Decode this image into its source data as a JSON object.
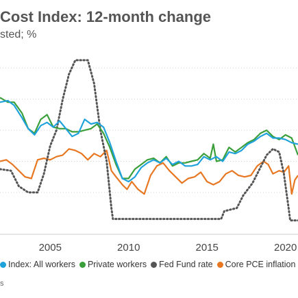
{
  "chart_data": {
    "type": "line",
    "title": "Cost Index: 12-month change",
    "subtitle": "sted; %",
    "x_ticks": [
      2005,
      2010,
      2015,
      2020
    ],
    "xlim": [
      2001.8,
      2020.8
    ],
    "ylim": [
      -0.3,
      5.6
    ],
    "grid": true,
    "legend_position": "bottom",
    "source_text": "s",
    "series": [
      {
        "name": "Index: All workers",
        "color": "#1fa2dc",
        "points": [
          [
            2001.8,
            3.9
          ],
          [
            2002.3,
            3.95
          ],
          [
            2002.7,
            3.8
          ],
          [
            2003.2,
            3.4
          ],
          [
            2003.6,
            3.05
          ],
          [
            2004.0,
            2.85
          ],
          [
            2004.4,
            3.15
          ],
          [
            2004.8,
            3.25
          ],
          [
            2005.2,
            3.1
          ],
          [
            2005.6,
            3.3
          ],
          [
            2006.0,
            3.05
          ],
          [
            2006.4,
            2.8
          ],
          [
            2006.8,
            2.9
          ],
          [
            2007.2,
            3.35
          ],
          [
            2007.6,
            3.2
          ],
          [
            2008.0,
            3.25
          ],
          [
            2008.4,
            3.1
          ],
          [
            2008.8,
            2.6
          ],
          [
            2009.2,
            2.0
          ],
          [
            2009.6,
            1.45
          ],
          [
            2010.0,
            1.35
          ],
          [
            2010.4,
            1.5
          ],
          [
            2010.8,
            1.8
          ],
          [
            2011.2,
            1.95
          ],
          [
            2011.6,
            2.05
          ],
          [
            2012.0,
            1.95
          ],
          [
            2012.4,
            2.1
          ],
          [
            2012.8,
            1.9
          ],
          [
            2013.2,
            2.0
          ],
          [
            2013.6,
            1.85
          ],
          [
            2014.0,
            1.85
          ],
          [
            2014.4,
            1.9
          ],
          [
            2014.8,
            2.15
          ],
          [
            2015.2,
            2.05
          ],
          [
            2015.6,
            2.15
          ],
          [
            2016.0,
            2.0
          ],
          [
            2016.4,
            2.3
          ],
          [
            2016.8,
            2.25
          ],
          [
            2017.2,
            2.35
          ],
          [
            2017.6,
            2.55
          ],
          [
            2018.0,
            2.65
          ],
          [
            2018.4,
            2.8
          ],
          [
            2018.8,
            2.9
          ],
          [
            2019.2,
            2.75
          ],
          [
            2019.6,
            2.75
          ],
          [
            2020.0,
            2.7
          ],
          [
            2020.4,
            2.6
          ],
          [
            2020.8,
            2.55
          ]
        ]
      },
      {
        "name": "Private workers",
        "color": "#3a9f3a",
        "points": [
          [
            2001.8,
            4.05
          ],
          [
            2002.3,
            3.9
          ],
          [
            2002.7,
            3.9
          ],
          [
            2003.2,
            3.55
          ],
          [
            2003.6,
            3.05
          ],
          [
            2004.0,
            2.9
          ],
          [
            2004.4,
            3.35
          ],
          [
            2004.8,
            3.5
          ],
          [
            2005.2,
            3.1
          ],
          [
            2005.6,
            3.05
          ],
          [
            2006.0,
            3.05
          ],
          [
            2006.4,
            2.95
          ],
          [
            2006.8,
            2.95
          ],
          [
            2007.2,
            3.0
          ],
          [
            2007.6,
            3.05
          ],
          [
            2008.0,
            3.2
          ],
          [
            2008.4,
            2.9
          ],
          [
            2008.8,
            2.45
          ],
          [
            2009.2,
            1.9
          ],
          [
            2009.6,
            1.45
          ],
          [
            2010.0,
            1.45
          ],
          [
            2010.4,
            1.75
          ],
          [
            2010.8,
            1.9
          ],
          [
            2011.2,
            2.05
          ],
          [
            2011.6,
            2.1
          ],
          [
            2012.0,
            1.95
          ],
          [
            2012.4,
            2.15
          ],
          [
            2012.8,
            1.85
          ],
          [
            2013.2,
            1.95
          ],
          [
            2013.6,
            1.95
          ],
          [
            2014.0,
            2.0
          ],
          [
            2014.4,
            2.05
          ],
          [
            2014.8,
            2.25
          ],
          [
            2015.2,
            2.1
          ],
          [
            2015.4,
            2.55
          ],
          [
            2015.6,
            2.0
          ],
          [
            2016.0,
            2.05
          ],
          [
            2016.4,
            2.45
          ],
          [
            2016.8,
            2.3
          ],
          [
            2017.2,
            2.45
          ],
          [
            2017.6,
            2.6
          ],
          [
            2018.0,
            2.7
          ],
          [
            2018.4,
            2.9
          ],
          [
            2018.8,
            3.0
          ],
          [
            2019.2,
            2.8
          ],
          [
            2019.6,
            2.7
          ],
          [
            2020.0,
            2.85
          ],
          [
            2020.4,
            2.75
          ],
          [
            2020.8,
            2.2
          ]
        ]
      },
      {
        "name": "Fed Fund rate",
        "color": "#555555",
        "points": [
          [
            2001.8,
            1.75
          ],
          [
            2002.5,
            1.7
          ],
          [
            2003.0,
            1.2
          ],
          [
            2003.6,
            1.0
          ],
          [
            2004.2,
            1.0
          ],
          [
            2004.6,
            1.6
          ],
          [
            2005.0,
            2.5
          ],
          [
            2005.4,
            3.0
          ],
          [
            2005.8,
            4.0
          ],
          [
            2006.2,
            4.8
          ],
          [
            2006.6,
            5.25
          ],
          [
            2007.4,
            5.25
          ],
          [
            2007.8,
            4.5
          ],
          [
            2008.2,
            3.0
          ],
          [
            2008.6,
            2.0
          ],
          [
            2008.9,
            0.5
          ],
          [
            2009.0,
            0.15
          ],
          [
            2015.9,
            0.15
          ],
          [
            2016.1,
            0.4
          ],
          [
            2016.9,
            0.5
          ],
          [
            2017.3,
            0.9
          ],
          [
            2017.9,
            1.3
          ],
          [
            2018.3,
            1.7
          ],
          [
            2018.8,
            2.2
          ],
          [
            2019.2,
            2.4
          ],
          [
            2019.6,
            2.3
          ],
          [
            2019.9,
            1.6
          ],
          [
            2020.2,
            0.5
          ],
          [
            2020.3,
            0.1
          ],
          [
            2020.8,
            0.1
          ]
        ]
      },
      {
        "name": "Core PCE inflation",
        "color": "#e87722",
        "points": [
          [
            2001.8,
            2.0
          ],
          [
            2002.2,
            2.05
          ],
          [
            2002.6,
            1.9
          ],
          [
            2003.0,
            1.7
          ],
          [
            2003.4,
            1.5
          ],
          [
            2003.8,
            1.45
          ],
          [
            2004.2,
            2.05
          ],
          [
            2004.6,
            2.1
          ],
          [
            2005.0,
            2.05
          ],
          [
            2005.4,
            2.15
          ],
          [
            2005.8,
            2.2
          ],
          [
            2006.2,
            2.4
          ],
          [
            2006.6,
            2.35
          ],
          [
            2007.0,
            2.25
          ],
          [
            2007.4,
            2.05
          ],
          [
            2007.8,
            2.25
          ],
          [
            2008.2,
            2.15
          ],
          [
            2008.6,
            2.35
          ],
          [
            2008.9,
            1.7
          ],
          [
            2009.2,
            1.5
          ],
          [
            2009.6,
            1.25
          ],
          [
            2009.9,
            1.1
          ],
          [
            2010.2,
            1.35
          ],
          [
            2010.6,
            1.1
          ],
          [
            2011.0,
            0.95
          ],
          [
            2011.4,
            1.55
          ],
          [
            2011.8,
            1.85
          ],
          [
            2012.2,
            1.95
          ],
          [
            2012.6,
            1.7
          ],
          [
            2013.0,
            1.5
          ],
          [
            2013.4,
            1.3
          ],
          [
            2013.8,
            1.45
          ],
          [
            2014.2,
            1.5
          ],
          [
            2014.6,
            1.65
          ],
          [
            2015.0,
            1.35
          ],
          [
            2015.4,
            1.25
          ],
          [
            2015.8,
            1.35
          ],
          [
            2016.2,
            1.6
          ],
          [
            2016.6,
            1.7
          ],
          [
            2017.0,
            1.55
          ],
          [
            2017.4,
            1.5
          ],
          [
            2017.8,
            1.55
          ],
          [
            2018.2,
            1.85
          ],
          [
            2018.6,
            2.0
          ],
          [
            2018.9,
            1.9
          ],
          [
            2019.2,
            1.6
          ],
          [
            2019.6,
            1.7
          ],
          [
            2019.9,
            1.65
          ],
          [
            2020.2,
            1.85
          ],
          [
            2020.4,
            0.95
          ],
          [
            2020.6,
            1.4
          ],
          [
            2020.8,
            1.55
          ]
        ]
      }
    ]
  }
}
